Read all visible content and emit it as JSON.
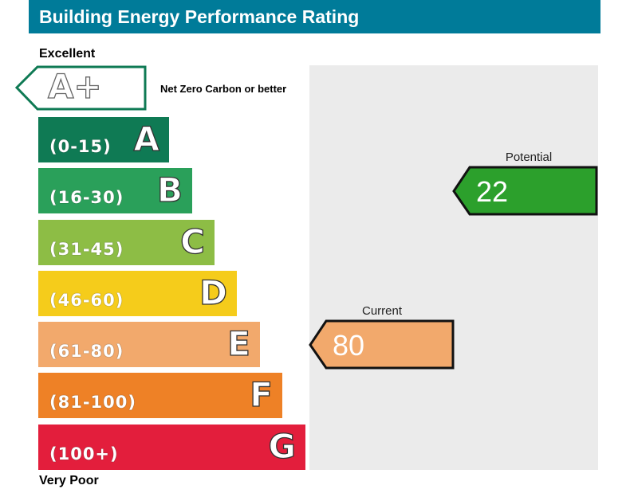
{
  "header": {
    "title": "Building Energy Performance Rating"
  },
  "labels": {
    "top": "Excellent",
    "bottom": "Very Poor",
    "aplus_letter": "A+",
    "aplus_desc": "Net Zero Carbon or better"
  },
  "colors": {
    "title_bg": "#007b99",
    "aplus_border": "#0f7a54",
    "panel": "#ebebeb"
  },
  "chart_data": {
    "type": "rating",
    "title": "Building Energy Performance Rating",
    "bands": [
      {
        "letter": "A",
        "range": "(0-15)",
        "color": "#0f7a54"
      },
      {
        "letter": "B",
        "range": "(16-30)",
        "color": "#2aa05a"
      },
      {
        "letter": "C",
        "range": "(31-45)",
        "color": "#8dbd45"
      },
      {
        "letter": "D",
        "range": "(46-60)",
        "color": "#f5cc1b"
      },
      {
        "letter": "E",
        "range": "(61-80)",
        "color": "#f2a96c"
      },
      {
        "letter": "F",
        "range": "(81-100)",
        "color": "#ee8126"
      },
      {
        "letter": "G",
        "range": "(100+)",
        "color": "#e31e3c"
      }
    ],
    "current": {
      "label": "Current",
      "value": "80",
      "color": "#f2a96c"
    },
    "potential": {
      "label": "Potential",
      "value": "22",
      "color": "#2ca02c"
    }
  }
}
